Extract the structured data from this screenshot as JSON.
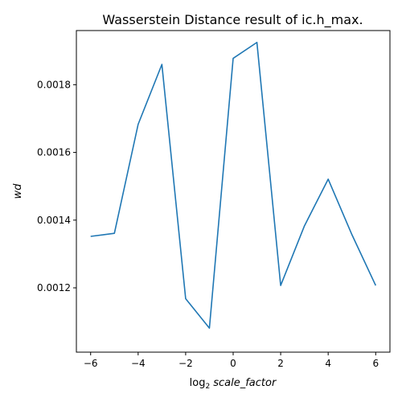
{
  "chart_data": {
    "type": "line",
    "title": "Wasserstein Distance result of ic.h_max.",
    "xlabel_base": "log",
    "xlabel_sub": "2",
    "xlabel_var": "scale_factor",
    "ylabel": "wd",
    "xlim": [
      -6.6,
      6.6
    ],
    "ylim": [
      0.00101,
      0.00196
    ],
    "grid": false,
    "x_ticks": [
      -6,
      -4,
      -2,
      0,
      2,
      4,
      6
    ],
    "x_tick_labels": [
      "−6",
      "−4",
      "−2",
      "0",
      "2",
      "4",
      "6"
    ],
    "y_ticks": [
      0.0012,
      0.0014,
      0.0016,
      0.0018
    ],
    "y_tick_labels": [
      "0.0012",
      "0.0014",
      "0.0016",
      "0.0018"
    ],
    "series": [
      {
        "color": "#1f77b4",
        "x": [
          -6,
          -5,
          -4,
          -3,
          -2,
          -1,
          0,
          1,
          2,
          3,
          4,
          5,
          6
        ],
        "y": [
          0.001352,
          0.001361,
          0.001683,
          0.00186,
          0.001168,
          0.001081,
          0.001878,
          0.001925,
          0.001207,
          0.001383,
          0.001521,
          0.001357,
          0.001207
        ]
      }
    ]
  }
}
